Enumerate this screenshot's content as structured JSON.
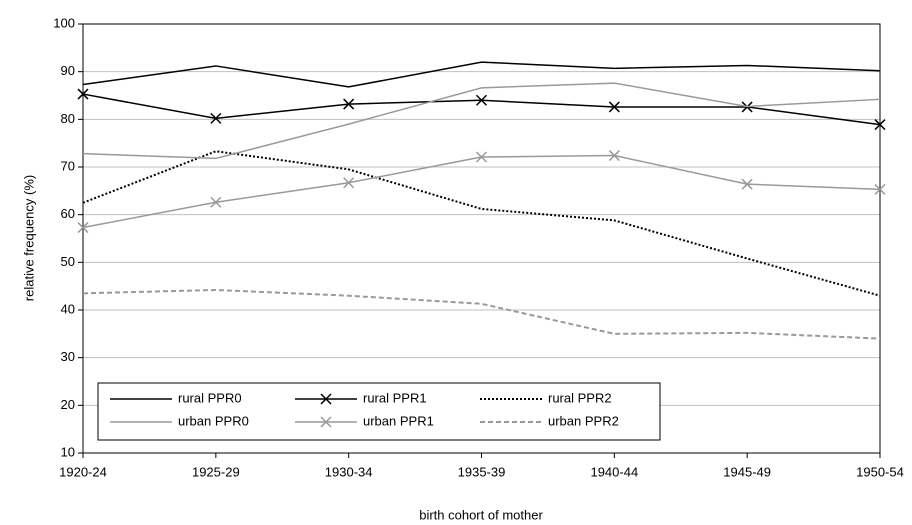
{
  "chart_data": {
    "type": "line",
    "x_label": "birth cohort of mother",
    "y_label": "relative frequency (%)",
    "categories": [
      "1920-24",
      "1925-29",
      "1930-34",
      "1935-39",
      "1940-44",
      "1945-49",
      "1950-54"
    ],
    "ylim": [
      10,
      100
    ],
    "yticks": [
      10,
      20,
      30,
      40,
      50,
      60,
      70,
      80,
      90,
      100
    ],
    "grid": true,
    "legend": "bottom-left",
    "series": [
      {
        "name": "rural PPR0",
        "color": "#000000",
        "dash": "solid",
        "marker": "none",
        "values": [
          87.3,
          91.2,
          86.8,
          92,
          90.7,
          91.3,
          90.2
        ]
      },
      {
        "name": "rural PPR1",
        "color": "#000000",
        "dash": "solid",
        "marker": "x",
        "values": [
          85.3,
          80.2,
          83.2,
          84,
          82.6,
          82.6,
          78.9
        ]
      },
      {
        "name": "rural PPR2",
        "color": "#000000",
        "dash": "dot",
        "marker": "none",
        "values": [
          62.5,
          73.3,
          69.5,
          61.2,
          58.8,
          50.8,
          43
        ]
      },
      {
        "name": "urban PPR0",
        "color": "#999999",
        "dash": "solid",
        "marker": "none",
        "values": [
          72.8,
          71.8,
          79,
          86.6,
          87.6,
          82.7,
          84.2
        ]
      },
      {
        "name": "urban PPR1",
        "color": "#999999",
        "dash": "solid",
        "marker": "x",
        "values": [
          57.3,
          62.6,
          66.7,
          72.1,
          72.4,
          66.4,
          65.3
        ]
      },
      {
        "name": "urban PPR2",
        "color": "#999999",
        "dash": "dash",
        "marker": "none",
        "values": [
          43.5,
          44.2,
          43,
          41.3,
          35,
          35.2,
          34
        ]
      }
    ]
  }
}
